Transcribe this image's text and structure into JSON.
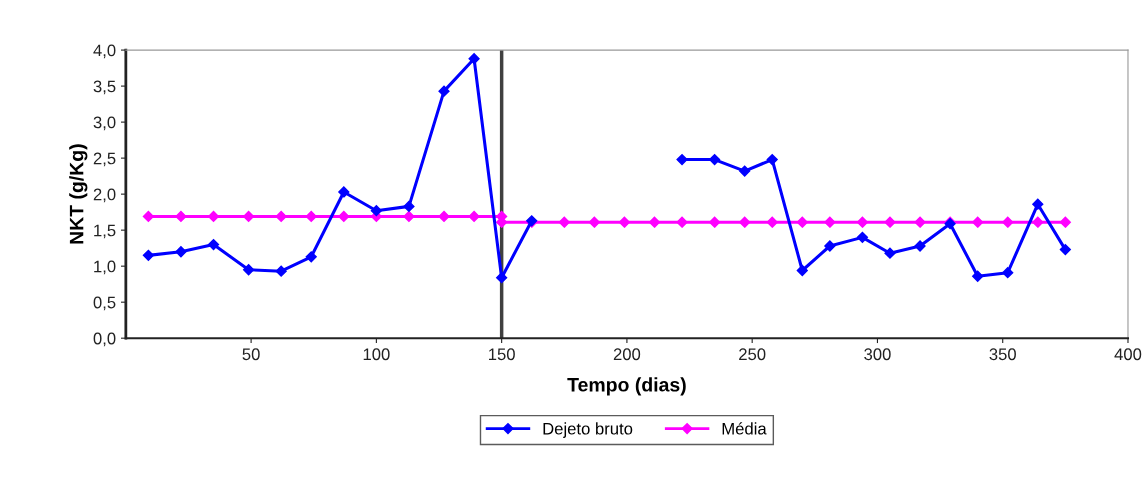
{
  "chart_data": {
    "type": "line",
    "xlabel": "Tempo (dias)",
    "ylabel": "NKT (g/Kg)",
    "series": [
      {
        "name": "Dejeto bruto",
        "color": "#0000ff",
        "x": [
          9,
          22,
          35,
          49,
          62,
          74,
          87,
          100,
          113,
          127,
          139,
          150,
          162,
          175,
          187,
          199,
          211,
          222,
          235,
          247,
          258,
          270,
          281,
          294,
          305,
          317,
          329,
          340,
          352,
          364,
          375
        ],
        "values": [
          1.15,
          1.2,
          1.3,
          0.95,
          0.93,
          1.13,
          2.03,
          1.77,
          1.83,
          3.43,
          3.88,
          0.84,
          1.63,
          null,
          null,
          null,
          null,
          2.48,
          2.48,
          2.32,
          2.48,
          0.94,
          1.28,
          1.4,
          1.18,
          1.28,
          1.59,
          0.86,
          0.91,
          1.86,
          1.23
        ]
      },
      {
        "name": "Média",
        "color": "#ff00ff",
        "x": [
          9,
          22,
          35,
          49,
          62,
          74,
          87,
          100,
          113,
          127,
          139,
          150,
          150,
          162,
          175,
          187,
          199,
          211,
          222,
          235,
          247,
          258,
          270,
          281,
          294,
          305,
          317,
          329,
          340,
          352,
          364,
          375
        ],
        "values": [
          1.69,
          1.69,
          1.69,
          1.69,
          1.69,
          1.69,
          1.69,
          1.69,
          1.69,
          1.69,
          1.69,
          1.69,
          1.61,
          1.61,
          1.61,
          1.61,
          1.61,
          1.61,
          1.61,
          1.61,
          1.61,
          1.61,
          1.61,
          1.61,
          1.61,
          1.61,
          1.61,
          1.61,
          1.61,
          1.61,
          1.61,
          1.61
        ]
      }
    ],
    "xlim": [
      0,
      400
    ],
    "xticks": [
      50,
      100,
      150,
      200,
      250,
      300,
      350,
      400
    ],
    "ylim": [
      0,
      4
    ],
    "yticks": [
      {
        "value": 0,
        "label": "0,0"
      },
      {
        "value": 0.5,
        "label": "0,5"
      },
      {
        "value": 1,
        "label": "1,0"
      },
      {
        "value": 1.5,
        "label": "1,5"
      },
      {
        "value": 2,
        "label": "2,0"
      },
      {
        "value": 2.5,
        "label": "2,5"
      },
      {
        "value": 3,
        "label": "3,0"
      },
      {
        "value": 3.5,
        "label": "3,5"
      },
      {
        "value": 4,
        "label": "4,0"
      }
    ],
    "ref_lines": [
      {
        "axis": "x",
        "value": 150,
        "color": "#404040"
      }
    ],
    "marker": "diamond",
    "line_style": "solid",
    "grid": false,
    "legend": "bottom"
  }
}
